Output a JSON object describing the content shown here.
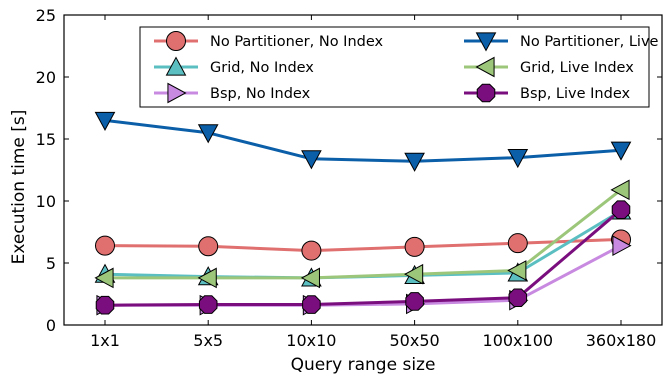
{
  "chart_data": {
    "type": "line",
    "title": "",
    "xlabel": "Query range size",
    "ylabel": "Execution time [s]",
    "categories": [
      "1x1",
      "5x5",
      "10x10",
      "50x50",
      "100x100",
      "360x180"
    ],
    "ylim": [
      0,
      25
    ],
    "yticks": [
      0,
      5,
      10,
      15,
      20,
      25
    ],
    "grid": false,
    "legend_position": "top-right",
    "legend_columns": 2,
    "series": [
      {
        "name": "No Partitioner, No Index",
        "color": "#e07070",
        "marker": "circle",
        "values": [
          6.4,
          6.35,
          6.0,
          6.3,
          6.6,
          6.9
        ]
      },
      {
        "name": "No Partitioner, Live Index",
        "color": "#0b5ea8",
        "marker": "triangle-down",
        "values": [
          16.5,
          15.5,
          13.4,
          13.2,
          13.5,
          14.1
        ]
      },
      {
        "name": "Grid, No Index",
        "color": "#5bbfc2",
        "marker": "triangle-up",
        "values": [
          4.1,
          3.9,
          3.8,
          4.0,
          4.2,
          9.2
        ]
      },
      {
        "name": "Grid, Live Index",
        "color": "#9cc77a",
        "marker": "triangle-left",
        "values": [
          3.8,
          3.8,
          3.8,
          4.1,
          4.4,
          10.9
        ]
      },
      {
        "name": "Bsp, No Index",
        "color": "#c889e0",
        "marker": "triangle-right",
        "values": [
          1.6,
          1.6,
          1.6,
          1.7,
          2.0,
          6.4
        ]
      },
      {
        "name": "Bsp, Live Index",
        "color": "#7a0e7e",
        "marker": "octagon",
        "values": [
          1.6,
          1.65,
          1.65,
          1.9,
          2.2,
          9.3
        ]
      }
    ]
  }
}
